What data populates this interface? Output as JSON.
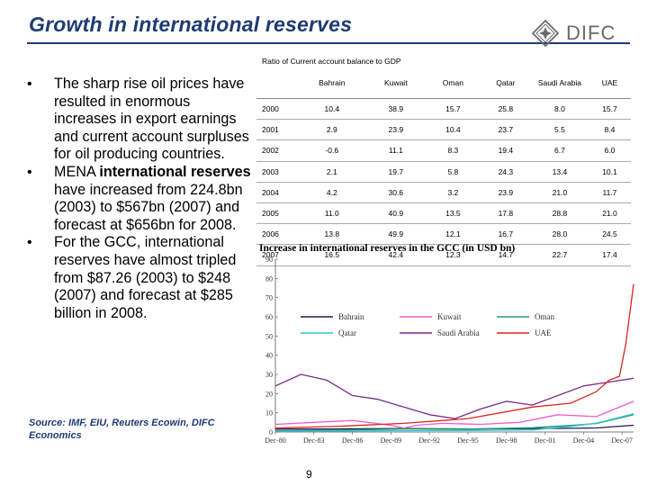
{
  "header": {
    "title": "Growth in international reserves",
    "logo_text": "DIFC"
  },
  "bullets": [
    {
      "parts": [
        {
          "text": "The sharp rise oil prices have resulted in enormous increases in export earnings and current account surpluses for oil producing countries.",
          "bold": false
        }
      ]
    },
    {
      "parts": [
        {
          "text": "MENA ",
          "bold": false
        },
        {
          "text": "international reserves",
          "bold": true
        },
        {
          "text": " have increased from 224.8bn (2003) to $567bn (2007) and forecast at $656bn for 2008.",
          "bold": false
        }
      ]
    },
    {
      "parts": [
        {
          "text": "For the GCC, international reserves have almost tripled from $87.26 (2003) to $248 (2007) and forecast at $285 billion in 2008.",
          "bold": false
        }
      ]
    }
  ],
  "source": "Source: IMF, EIU, Reuters Ecowin, DIFC Economics",
  "page_number": "9",
  "table": {
    "caption": "Ratio of Current account balance to GDP",
    "columns": [
      "",
      "Bahrain",
      "Kuwait",
      "Oman",
      "Qatar",
      "Saudi Arabia",
      "UAE"
    ],
    "rows": [
      [
        "2000",
        "10.4",
        "38.9",
        "15.7",
        "25.8",
        "8.0",
        "15.7"
      ],
      [
        "2001",
        "2.9",
        "23.9",
        "10.4",
        "23.7",
        "5.5",
        "8.4"
      ],
      [
        "2002",
        "-0.6",
        "11.1",
        "8.3",
        "19.4",
        "6.7",
        "6.0"
      ],
      [
        "2003",
        "2.1",
        "19.7",
        "5.8",
        "24.3",
        "13.4",
        "10.1"
      ],
      [
        "2004",
        "4.2",
        "30.6",
        "3.2",
        "23.9",
        "21.0",
        "11.7"
      ],
      [
        "2005",
        "11.0",
        "40.9",
        "13.5",
        "17.8",
        "28.8",
        "21.0"
      ],
      [
        "2006",
        "13.8",
        "49.9",
        "12.1",
        "16.7",
        "28.0",
        "24.5"
      ],
      [
        "2007",
        "16.5",
        "42.4",
        "12.3",
        "14.7",
        "22.7",
        "17.4"
      ]
    ]
  },
  "chart_data": {
    "type": "line",
    "title": "Increase in international reserves in the GCC (in USD bn)",
    "xlabel": "",
    "ylabel": "",
    "x_ticks": [
      "Dec-80",
      "Dec-83",
      "Dec-86",
      "Dec-89",
      "Dec-92",
      "Dec-95",
      "Dec-98",
      "Dec-01",
      "Dec-04",
      "Dec-07"
    ],
    "y_ticks": [
      "0",
      "10",
      "20",
      "30",
      "40",
      "50",
      "60",
      "70",
      "80",
      "90"
    ],
    "ylim": [
      0,
      90
    ],
    "xlim": [
      1980,
      2007.9
    ],
    "grid": false,
    "legend_position": "top",
    "series": [
      {
        "name": "Bahrain",
        "color": "#1c1c5a",
        "x": [
          1980,
          1985,
          1990,
          1995,
          2000,
          2003,
          2005,
          2007.9
        ],
        "y": [
          1.5,
          1.6,
          1.8,
          1.6,
          1.8,
          1.9,
          2.1,
          3.5
        ]
      },
      {
        "name": "Kuwait",
        "color": "#e75fd0",
        "x": [
          1980,
          1983,
          1986,
          1989,
          1990,
          1991,
          1993,
          1996,
          1999,
          2002,
          2005,
          2007.9
        ],
        "y": [
          4,
          5,
          6,
          3.5,
          2,
          3.5,
          4.5,
          4,
          5,
          9,
          8,
          16
        ]
      },
      {
        "name": "Oman",
        "color": "#1a9d6a",
        "x": [
          1980,
          1985,
          1990,
          1995,
          2000,
          2003,
          2005,
          2007.9
        ],
        "y": [
          0.6,
          1,
          1.6,
          1.5,
          2.2,
          3.4,
          4.4,
          9
        ]
      },
      {
        "name": "Qatar",
        "color": "#33c3d8",
        "x": [
          1980,
          1985,
          1990,
          1995,
          2000,
          2003,
          2005,
          2007.9
        ],
        "y": [
          0.4,
          0.5,
          0.7,
          0.8,
          1.1,
          2.9,
          4.6,
          9.5
        ]
      },
      {
        "name": "Saudi Arabia",
        "color": "#7a2a8a",
        "x": [
          1980,
          1982,
          1984,
          1986,
          1988,
          1990,
          1992,
          1994,
          1996,
          1998,
          2000,
          2002,
          2004,
          2006,
          2007.9
        ],
        "y": [
          24,
          30,
          27,
          19,
          17,
          13,
          9,
          7,
          12,
          16,
          14,
          19,
          24,
          26,
          28
        ]
      },
      {
        "name": "UAE",
        "color": "#d8261f",
        "x": [
          1980,
          1985,
          1990,
          1995,
          2000,
          2003,
          2005,
          2006,
          2006.8,
          2007.3,
          2007.9
        ],
        "y": [
          2,
          3,
          4.5,
          7,
          13,
          15,
          21,
          27,
          29,
          46,
          77
        ]
      }
    ]
  }
}
